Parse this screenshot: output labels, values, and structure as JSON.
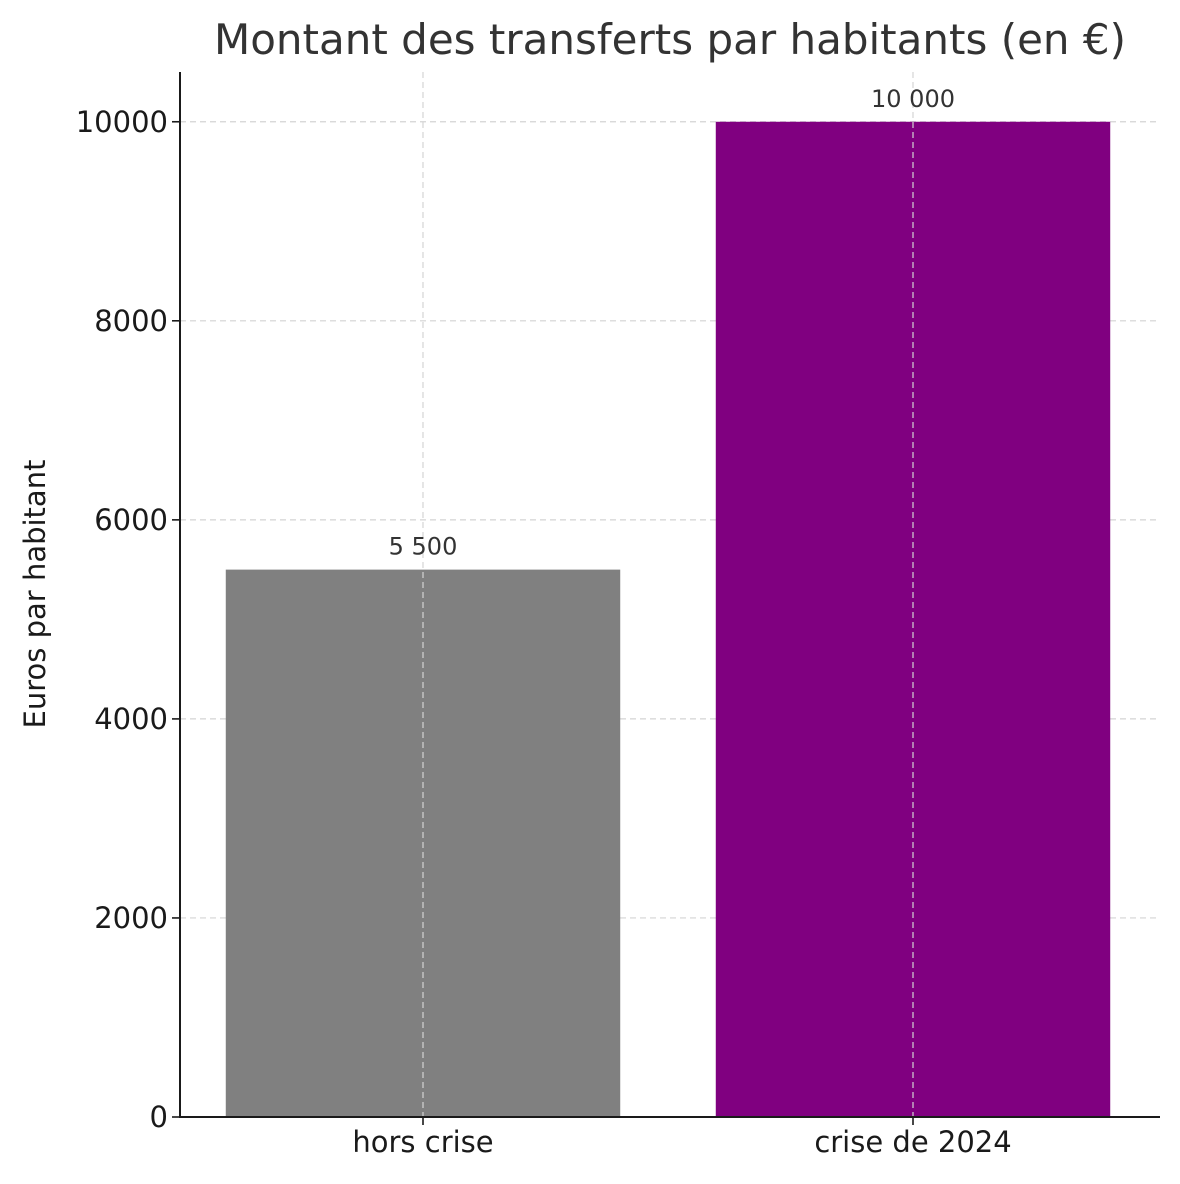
{
  "chart_data": {
    "type": "bar",
    "title": "Montant des transferts par habitants (en €)",
    "xlabel": "",
    "ylabel": "Euros par habitant",
    "categories": [
      "hors crise",
      "crise de 2024"
    ],
    "values": [
      5500,
      10000
    ],
    "data_labels": [
      "5 500",
      "10 000"
    ],
    "colors": [
      "#808080",
      "#800080"
    ],
    "ylim": [
      0,
      10500
    ],
    "yticks": [
      0,
      2000,
      4000,
      6000,
      8000,
      10000
    ],
    "ytick_labels": [
      "0",
      "2000",
      "4000",
      "6000",
      "8000",
      "10000"
    ],
    "grid": true,
    "legend": "none"
  }
}
